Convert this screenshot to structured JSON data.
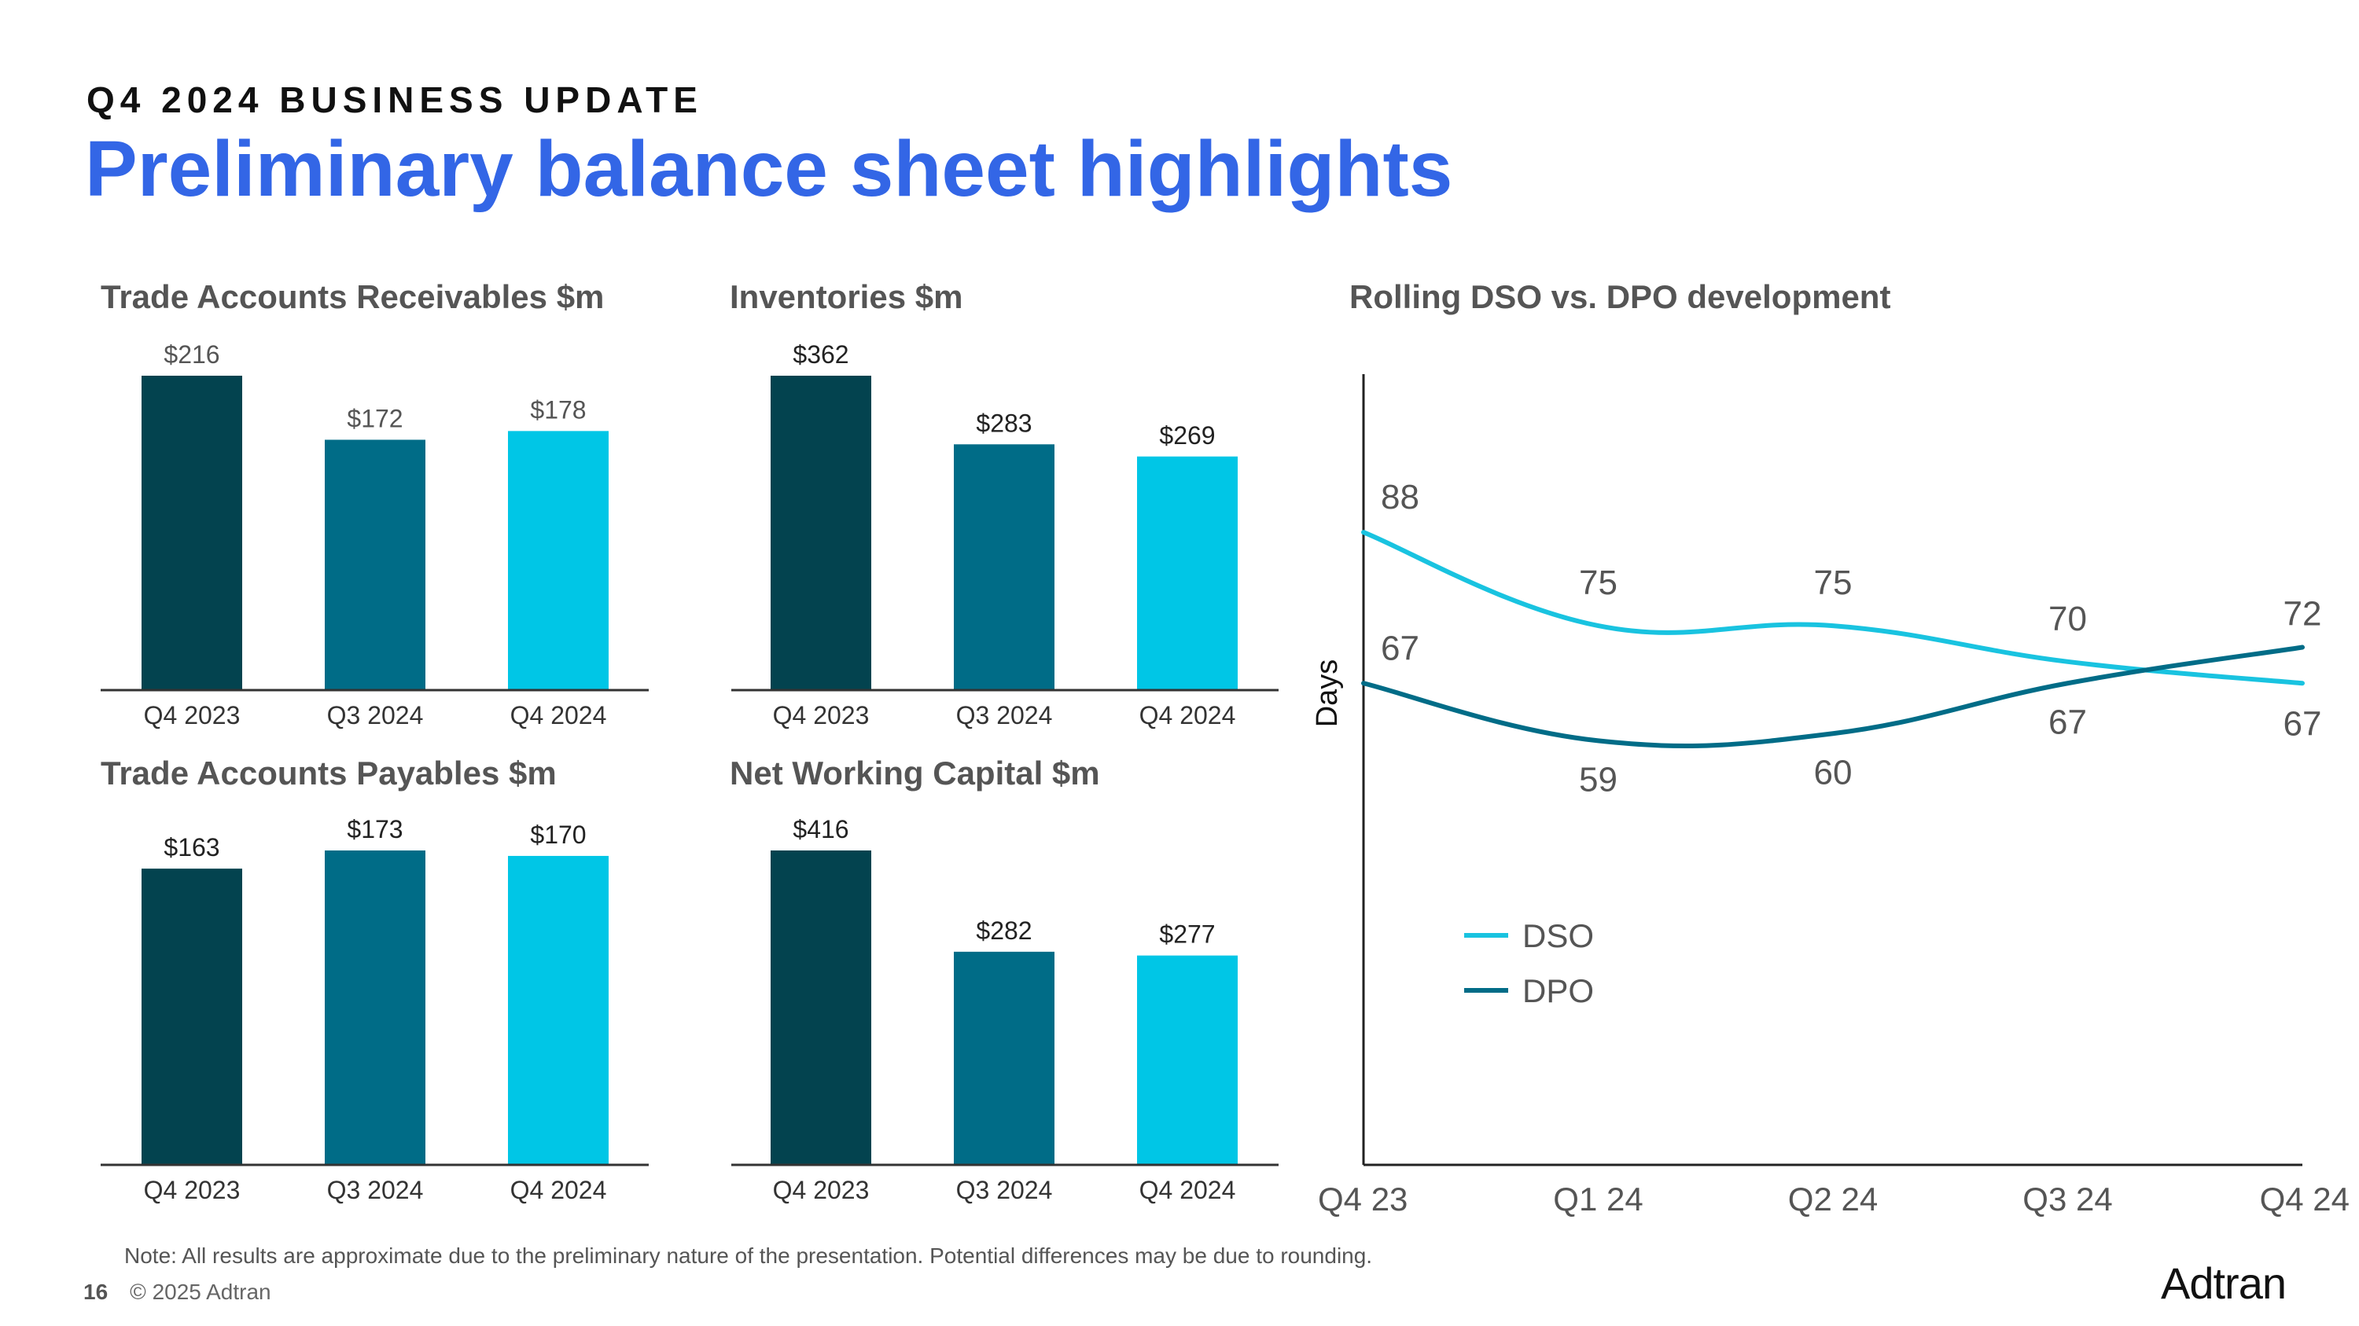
{
  "header": {
    "eyebrow": "Q4 2024 BUSINESS UPDATE",
    "title": "Preliminary balance sheet highlights"
  },
  "colors": {
    "title_blue": "#3366e6",
    "dark_teal": "#03434f",
    "mid_teal": "#006c87",
    "bright_cyan": "#00c6e6",
    "dso_line": "#19c3e0",
    "dpo_line": "#006c87"
  },
  "chart_data": [
    {
      "id": "receivables",
      "type": "bar",
      "title": "Trade Accounts Receivables $m",
      "categories": [
        "Q4 2023",
        "Q3 2024",
        "Q4 2024"
      ],
      "values": [
        216,
        172,
        178
      ],
      "labels": [
        "$216",
        "$172",
        "$178"
      ],
      "ylim": [
        0,
        216
      ]
    },
    {
      "id": "inventories",
      "type": "bar",
      "title": "Inventories $m",
      "categories": [
        "Q4 2023",
        "Q3 2024",
        "Q4 2024"
      ],
      "values": [
        362,
        283,
        269
      ],
      "labels": [
        "$362",
        "$283",
        "$269"
      ],
      "ylim": [
        0,
        362
      ]
    },
    {
      "id": "payables",
      "type": "bar",
      "title": "Trade Accounts Payables $m",
      "categories": [
        "Q4 2023",
        "Q3 2024",
        "Q4 2024"
      ],
      "values": [
        163,
        173,
        170
      ],
      "labels": [
        "$163",
        "$173",
        "$170"
      ],
      "ylim": [
        0,
        173
      ]
    },
    {
      "id": "nwc",
      "type": "bar",
      "title": "Net Working Capital $m",
      "categories": [
        "Q4 2023",
        "Q3 2024",
        "Q4 2024"
      ],
      "values": [
        416,
        282,
        277
      ],
      "labels": [
        "$416",
        "$282",
        "$277"
      ],
      "ylim": [
        0,
        416
      ]
    },
    {
      "id": "dso_dpo",
      "type": "line",
      "title": "Rolling DSO vs. DPO development",
      "ylabel": "Days",
      "x": [
        "Q4 23",
        "Q1 24",
        "Q2 24",
        "Q3 24",
        "Q4 24"
      ],
      "ylim": [
        0,
        110
      ],
      "series": [
        {
          "name": "DSO",
          "values": [
            88,
            75,
            75,
            70,
            67
          ],
          "labels": [
            "88",
            "75",
            "75",
            "70",
            "67"
          ]
        },
        {
          "name": "DPO",
          "values": [
            67,
            59,
            60,
            67,
            72
          ],
          "labels": [
            "67",
            "59",
            "60",
            "67",
            "72"
          ]
        }
      ],
      "legend": [
        "DSO",
        "DPO"
      ],
      "legend_position": "lower-left"
    }
  ],
  "note": "Note: All results are approximate due to the preliminary nature of the presentation. Potential differences may be due to rounding.",
  "footer": {
    "page_number": "16",
    "copyright": "© 2025 Adtran",
    "logo_text": "Adtran"
  }
}
